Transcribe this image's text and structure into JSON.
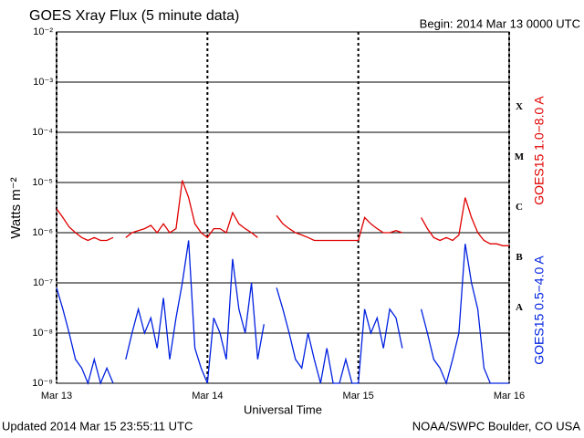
{
  "chart_data": {
    "type": "line",
    "title": "GOES Xray Flux (5 minute data)",
    "subtitle": "Begin:  2014 Mar 13 0000 UTC",
    "y_label": "Watts m⁻²",
    "x_label": "Universal Time",
    "footer_left": "Updated 2014 Mar 15 23:55:11 UTC",
    "footer_right": "NOAA/SWPC Boulder, CO USA",
    "log_scale": true,
    "grid": true,
    "xlim": [
      "2014-03-13T00:00",
      "2014-03-16T00:00"
    ],
    "xticks": [
      {
        "value": "2014-03-13T00:00",
        "label": "Mar 13"
      },
      {
        "value": "2014-03-14T00:00",
        "label": "Mar 14"
      },
      {
        "value": "2014-03-15T00:00",
        "label": "Mar 15"
      },
      {
        "value": "2014-03-16T00:00",
        "label": "Mar 16"
      }
    ],
    "ylim": [
      1e-09,
      0.01
    ],
    "yticks": [
      {
        "value": 1e-09,
        "label": "10⁻⁹"
      },
      {
        "value": 1e-08,
        "label": "10⁻⁸"
      },
      {
        "value": 1e-07,
        "label": "10⁻⁷"
      },
      {
        "value": 1e-06,
        "label": "10⁻⁶"
      },
      {
        "value": 1e-05,
        "label": "10⁻⁵"
      },
      {
        "value": 0.0001,
        "label": "10⁻⁴"
      },
      {
        "value": 0.001,
        "label": "10⁻³"
      },
      {
        "value": 0.01,
        "label": "10⁻²"
      }
    ],
    "flare_classes": [
      {
        "label": "A",
        "value": 1e-08
      },
      {
        "label": "B",
        "value": 1e-07
      },
      {
        "label": "C",
        "value": 1e-06
      },
      {
        "label": "M",
        "value": 1e-05
      },
      {
        "label": "X",
        "value": 0.0001
      }
    ],
    "x": [
      "2014-03-13T00:00",
      "2014-03-13T01:00",
      "2014-03-13T02:00",
      "2014-03-13T03:00",
      "2014-03-13T04:00",
      "2014-03-13T05:00",
      "2014-03-13T06:00",
      "2014-03-13T07:00",
      "2014-03-13T08:00",
      "2014-03-13T09:00",
      "2014-03-13T10:00",
      "2014-03-13T11:00",
      "2014-03-13T12:00",
      "2014-03-13T13:00",
      "2014-03-13T14:00",
      "2014-03-13T15:00",
      "2014-03-13T16:00",
      "2014-03-13T17:00",
      "2014-03-13T18:00",
      "2014-03-13T19:00",
      "2014-03-13T20:00",
      "2014-03-13T21:00",
      "2014-03-13T22:00",
      "2014-03-13T23:00",
      "2014-03-14T00:00",
      "2014-03-14T01:00",
      "2014-03-14T02:00",
      "2014-03-14T03:00",
      "2014-03-14T04:00",
      "2014-03-14T05:00",
      "2014-03-14T06:00",
      "2014-03-14T07:00",
      "2014-03-14T08:00",
      "2014-03-14T09:00",
      "2014-03-14T10:00",
      "2014-03-14T11:00",
      "2014-03-14T12:00",
      "2014-03-14T13:00",
      "2014-03-14T14:00",
      "2014-03-14T15:00",
      "2014-03-14T16:00",
      "2014-03-14T17:00",
      "2014-03-14T18:00",
      "2014-03-14T19:00",
      "2014-03-14T20:00",
      "2014-03-14T21:00",
      "2014-03-14T22:00",
      "2014-03-14T23:00",
      "2014-03-15T00:00",
      "2014-03-15T01:00",
      "2014-03-15T02:00",
      "2014-03-15T03:00",
      "2014-03-15T04:00",
      "2014-03-15T05:00",
      "2014-03-15T06:00",
      "2014-03-15T07:00",
      "2014-03-15T08:00",
      "2014-03-15T09:00",
      "2014-03-15T10:00",
      "2014-03-15T11:00",
      "2014-03-15T12:00",
      "2014-03-15T13:00",
      "2014-03-15T14:00",
      "2014-03-15T15:00",
      "2014-03-15T16:00",
      "2014-03-15T17:00",
      "2014-03-15T18:00",
      "2014-03-15T19:00",
      "2014-03-15T20:00",
      "2014-03-15T21:00",
      "2014-03-15T22:00",
      "2014-03-15T23:00",
      "2014-03-16T00:00"
    ],
    "series": [
      {
        "name": "GOES15 1.0−8.0 A",
        "color": "#e00000",
        "values": [
          3e-06,
          2e-06,
          1.3e-06,
          1e-06,
          8e-07,
          7e-07,
          8e-07,
          7e-07,
          7e-07,
          8e-07,
          null,
          8e-07,
          1e-06,
          1.1e-06,
          1.2e-06,
          1.4e-06,
          1e-06,
          1.5e-06,
          1e-06,
          1.2e-06,
          1.1e-05,
          5e-06,
          1.5e-06,
          1e-06,
          8e-07,
          1.2e-06,
          1.2e-06,
          1e-06,
          2.5e-06,
          1.5e-06,
          1.2e-06,
          1e-06,
          8e-07,
          null,
          null,
          2.2e-06,
          1.5e-06,
          1.2e-06,
          1e-06,
          9e-07,
          8e-07,
          7e-07,
          7e-07,
          7e-07,
          7e-07,
          7e-07,
          7e-07,
          7e-07,
          7e-07,
          2e-06,
          1.5e-06,
          1.2e-06,
          1e-06,
          1e-06,
          1.1e-06,
          1e-06,
          null,
          null,
          2e-06,
          1.2e-06,
          8e-07,
          7e-07,
          8e-07,
          7e-07,
          9e-07,
          5e-06,
          2e-06,
          1e-06,
          7e-07,
          6e-07,
          6e-07,
          5.5e-07,
          5.5e-07
        ]
      },
      {
        "name": "GOES15 0.5−4.0 A",
        "color": "#0020e0",
        "values": [
          8e-08,
          3e-08,
          1e-08,
          3e-09,
          2e-09,
          1e-09,
          3e-09,
          1e-09,
          2e-09,
          1e-09,
          null,
          3e-09,
          1e-08,
          3e-08,
          1e-08,
          2e-08,
          5e-09,
          5e-08,
          3e-09,
          2e-08,
          1e-07,
          7e-07,
          5e-09,
          2e-09,
          1e-09,
          2e-08,
          1e-08,
          3e-09,
          3e-07,
          3e-08,
          1e-08,
          1e-07,
          3e-09,
          1.5e-08,
          null,
          8e-08,
          3e-08,
          1e-08,
          3e-09,
          2e-09,
          1e-08,
          3e-09,
          1e-09,
          5e-09,
          1e-09,
          1e-09,
          3e-09,
          1e-09,
          1e-09,
          3e-08,
          1e-08,
          2e-08,
          5e-09,
          3e-08,
          2e-08,
          5e-09,
          null,
          null,
          3e-08,
          1e-08,
          3e-09,
          2e-09,
          1e-09,
          3e-09,
          1e-08,
          6e-07,
          1e-07,
          3e-08,
          2e-09,
          1e-09,
          1e-09,
          1e-09,
          1e-09
        ]
      }
    ]
  }
}
